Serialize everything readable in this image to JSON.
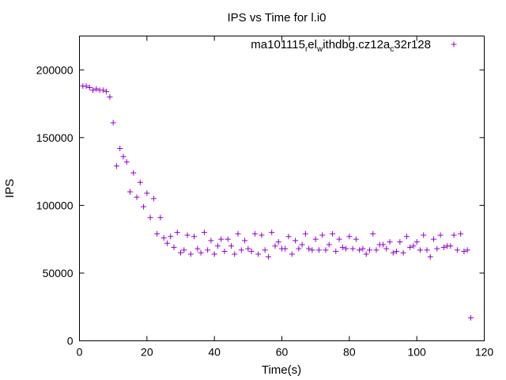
{
  "chart_data": {
    "type": "scatter",
    "title": "IPS vs Time for l.i0",
    "xlabel": "Time(s)",
    "ylabel": "IPS",
    "xlim": [
      0,
      120
    ],
    "ylim": [
      0,
      225000
    ],
    "x_ticks": [
      0,
      20,
      40,
      60,
      80,
      100,
      120
    ],
    "y_ticks": [
      0,
      50000,
      100000,
      150000,
      200000
    ],
    "grid": false,
    "legend_position": "top-right",
    "series": [
      {
        "name_parts": [
          "ma101115",
          "r",
          "el",
          "w",
          "ithdbg.cz12a",
          "c",
          "32r128"
        ],
        "color": "#9400D3",
        "marker": "+",
        "x": [
          1,
          2,
          3,
          4,
          5,
          6,
          7,
          8,
          9,
          10,
          11,
          12,
          13,
          14,
          15,
          16,
          17,
          18,
          19,
          20,
          21,
          22,
          23,
          24,
          25,
          26,
          27,
          28,
          29,
          30,
          31,
          32,
          33,
          34,
          35,
          36,
          37,
          38,
          39,
          40,
          41,
          42,
          43,
          44,
          45,
          46,
          47,
          48,
          49,
          50,
          51,
          52,
          53,
          54,
          55,
          56,
          57,
          58,
          59,
          60,
          61,
          62,
          63,
          64,
          65,
          66,
          67,
          68,
          69,
          70,
          71,
          72,
          73,
          74,
          75,
          76,
          77,
          78,
          79,
          80,
          81,
          82,
          83,
          84,
          85,
          86,
          87,
          88,
          89,
          90,
          91,
          92,
          93,
          94,
          95,
          96,
          97,
          98,
          99,
          100,
          101,
          102,
          103,
          104,
          105,
          106,
          107,
          108,
          109,
          110,
          111,
          112,
          113,
          114,
          115,
          116
        ],
        "y": [
          188000,
          188000,
          187000,
          185000,
          186000,
          185000,
          185000,
          184000,
          180000,
          161000,
          129000,
          142000,
          136000,
          132000,
          110000,
          124000,
          106000,
          117000,
          99000,
          109000,
          91000,
          105000,
          79000,
          91000,
          76000,
          72000,
          77000,
          69000,
          80000,
          65000,
          67000,
          78000,
          64000,
          77000,
          68000,
          65000,
          80000,
          67000,
          74000,
          64000,
          70000,
          75000,
          66000,
          75000,
          70000,
          64000,
          79000,
          67000,
          74000,
          68000,
          66000,
          79000,
          64000,
          78000,
          67000,
          62000,
          80000,
          70000,
          73000,
          68000,
          68000,
          77000,
          64000,
          74000,
          68000,
          71000,
          79000,
          68000,
          67000,
          75000,
          67000,
          78000,
          67000,
          71000,
          79000,
          66000,
          75000,
          69000,
          68000,
          77000,
          68000,
          75000,
          67000,
          68000,
          64000,
          67000,
          79000,
          67000,
          71000,
          71000,
          68000,
          73000,
          65000,
          66000,
          73000,
          65000,
          77000,
          69000,
          70000,
          73000,
          67000,
          78000,
          67000,
          62000,
          75000,
          68000,
          78000,
          69000,
          70000,
          70000,
          78000,
          67000,
          79000,
          66000,
          67000,
          17000
        ]
      }
    ]
  }
}
